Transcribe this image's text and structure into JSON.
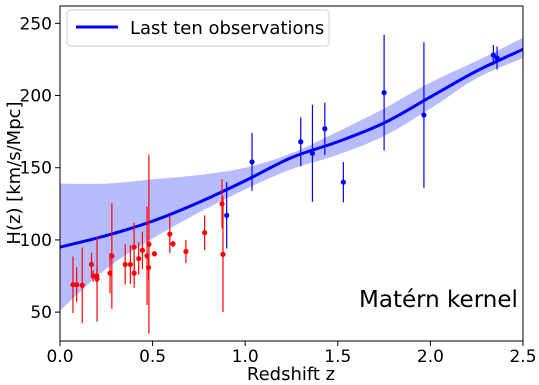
{
  "chart_data": {
    "type": "scatter",
    "xlabel": "Redshift z",
    "ylabel": "H(z) [km/s/Mpc]",
    "xlim": [
      0,
      2.5
    ],
    "ylim": [
      30,
      262
    ],
    "xticks": [
      "0.0",
      "0.5",
      "1.0",
      "1.5",
      "2.0",
      "2.5"
    ],
    "yticks": [
      "50",
      "100",
      "150",
      "200",
      "250"
    ],
    "legend": {
      "position": "top-left",
      "entries": [
        "Last ten observations"
      ]
    },
    "annotation": "Matérn kernel",
    "grid": false,
    "colors": {
      "red_points": "#ff0000",
      "blue_points": "#0000ff",
      "curve": "#0000ff",
      "band": "#aab0ff"
    },
    "series": [
      {
        "type": "errorbar",
        "color": "#ff0000",
        "points": [
          {
            "x": 0.07,
            "y": 69,
            "err": 19.6
          },
          {
            "x": 0.09,
            "y": 69,
            "err": 12
          },
          {
            "x": 0.12,
            "y": 68.6,
            "err": 26.2
          },
          {
            "x": 0.17,
            "y": 83,
            "err": 8
          },
          {
            "x": 0.179,
            "y": 75,
            "err": 4
          },
          {
            "x": 0.199,
            "y": 75,
            "err": 5
          },
          {
            "x": 0.2,
            "y": 72.9,
            "err": 29.6
          },
          {
            "x": 0.27,
            "y": 77,
            "err": 14
          },
          {
            "x": 0.28,
            "y": 88.8,
            "err": 36.6
          },
          {
            "x": 0.352,
            "y": 83,
            "err": 14
          },
          {
            "x": 0.38,
            "y": 83,
            "err": 13.5
          },
          {
            "x": 0.4,
            "y": 95,
            "err": 17
          },
          {
            "x": 0.4004,
            "y": 77,
            "err": 10.2
          },
          {
            "x": 0.425,
            "y": 87.1,
            "err": 11.2
          },
          {
            "x": 0.445,
            "y": 92.8,
            "err": 12.9
          },
          {
            "x": 0.47,
            "y": 89,
            "err": 34
          },
          {
            "x": 0.4783,
            "y": 80.9,
            "err": 9
          },
          {
            "x": 0.48,
            "y": 97,
            "err": 62
          },
          {
            "x": 0.51,
            "y": 90.4,
            "err": 1.9
          },
          {
            "x": 0.593,
            "y": 104,
            "err": 13
          },
          {
            "x": 0.61,
            "y": 97.3,
            "err": 2.1
          },
          {
            "x": 0.68,
            "y": 92,
            "err": 8
          },
          {
            "x": 0.781,
            "y": 105,
            "err": 12
          },
          {
            "x": 0.875,
            "y": 125,
            "err": 17
          },
          {
            "x": 0.88,
            "y": 90,
            "err": 40
          }
        ]
      },
      {
        "type": "errorbar",
        "color": "#0000ff",
        "points": [
          {
            "x": 0.9,
            "y": 117,
            "err": 23
          },
          {
            "x": 1.037,
            "y": 154,
            "err": 20
          },
          {
            "x": 1.3,
            "y": 168,
            "err": 17
          },
          {
            "x": 1.363,
            "y": 160,
            "err": 33.6
          },
          {
            "x": 1.43,
            "y": 177,
            "err": 18
          },
          {
            "x": 1.53,
            "y": 140,
            "err": 14
          },
          {
            "x": 1.75,
            "y": 202,
            "err": 40
          },
          {
            "x": 1.965,
            "y": 186.5,
            "err": 50.4
          },
          {
            "x": 2.34,
            "y": 228,
            "err": 7
          },
          {
            "x": 2.36,
            "y": 226,
            "err": 8
          }
        ]
      },
      {
        "type": "line",
        "name": "Last ten observations",
        "color": "#0000ff",
        "x": [
          0,
          0.25,
          0.5,
          0.75,
          1.0,
          1.25,
          1.5,
          1.75,
          2.0,
          2.25,
          2.5
        ],
        "y": [
          95,
          103,
          113,
          126,
          141,
          157,
          168,
          181,
          199,
          217,
          232
        ]
      },
      {
        "type": "band",
        "color": "#aab0ff",
        "x": [
          0,
          0.25,
          0.5,
          0.75,
          1.0,
          1.25,
          1.5,
          1.75,
          2.0,
          2.25,
          2.5
        ],
        "lower": [
          51,
          80,
          101,
          119,
          135,
          149,
          159,
          172,
          191,
          212,
          226
        ],
        "upper": [
          139,
          139,
          142,
          145,
          150,
          160,
          175,
          191,
          209,
          224,
          240
        ]
      }
    ]
  }
}
